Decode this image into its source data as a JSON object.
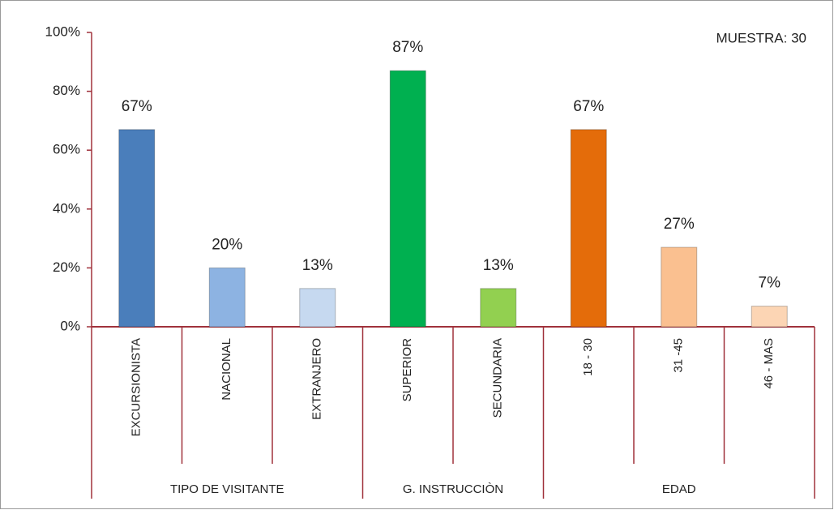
{
  "chart_data": {
    "type": "bar",
    "annotation": "MUESTRA:  30",
    "groups": [
      {
        "name": "TIPO DE VISITANTE",
        "categories": [
          "EXCURSIONISTA",
          "NACIONAL",
          "EXTRANJERO"
        ],
        "values": [
          67,
          20,
          13
        ],
        "value_labels": [
          "67%",
          "20%",
          "13%"
        ],
        "colors": [
          "#4a7ebb",
          "#8db3e2",
          "#c6d9f0"
        ]
      },
      {
        "name": "G. INSTRUCCIÒN",
        "categories": [
          "SUPERIOR",
          "SECUNDARIA"
        ],
        "values": [
          87,
          13
        ],
        "value_labels": [
          "87%",
          "13%"
        ],
        "colors": [
          "#00b050",
          "#92d050"
        ]
      },
      {
        "name": "EDAD",
        "categories": [
          "18 - 30",
          "31 -45",
          "46 - MAS"
        ],
        "values": [
          67,
          27,
          7
        ],
        "value_labels": [
          "67%",
          "27%",
          "7%"
        ],
        "colors": [
          "#e46c0a",
          "#fac090",
          "#fcd5b4"
        ]
      }
    ],
    "ylim": [
      0,
      100
    ],
    "yticks": [
      {
        "value": 0,
        "label": "0%"
      },
      {
        "value": 20,
        "label": "20%"
      },
      {
        "value": 40,
        "label": "40%"
      },
      {
        "value": 60,
        "label": "60%"
      },
      {
        "value": 80,
        "label": "80%"
      },
      {
        "value": 100,
        "label": "100%"
      }
    ]
  }
}
